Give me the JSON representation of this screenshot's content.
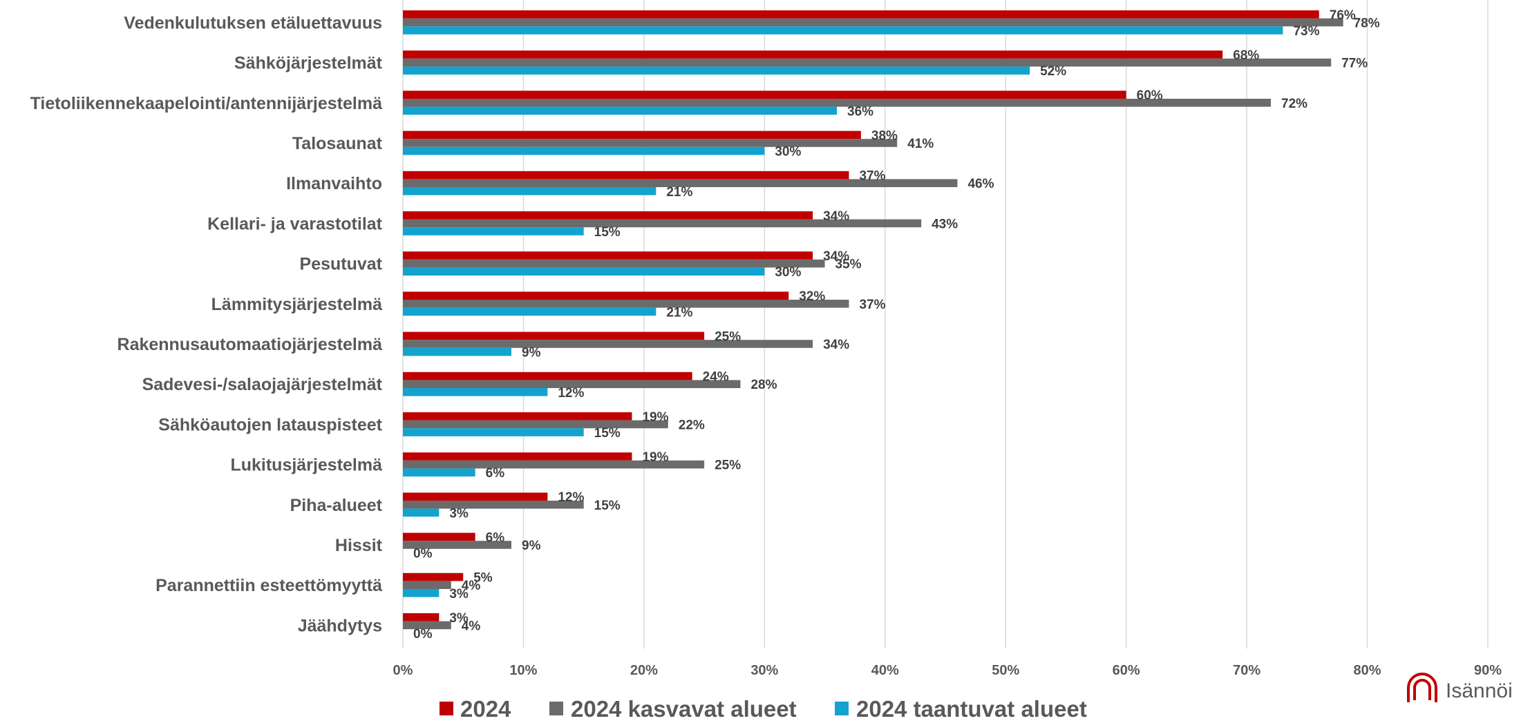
{
  "chart_data": {
    "type": "bar",
    "orientation": "horizontal",
    "categories": [
      "Vedenkulutuksen etäluettavuus",
      "Sähköjärjestelmät",
      "Tietoliikennekaapelointi/antennijärjestelmä",
      "Talosaunat",
      "Ilmanvaihto",
      "Kellari- ja varastotilat",
      "Pesutuvat",
      "Lämmitysjärjestelmä",
      "Rakennusautomaatiojärjestelmä",
      "Sadevesi-/salaojajärjestelmät",
      "Sähköautojen latauspisteet",
      "Lukitusjärjestelmä",
      "Piha-alueet",
      "Hissit",
      "Parannettiin esteettömyyttä",
      "Jäähdytys"
    ],
    "series": [
      {
        "name": "2024",
        "color": "#c00000",
        "values": [
          76,
          68,
          60,
          38,
          37,
          34,
          34,
          32,
          25,
          24,
          19,
          19,
          12,
          6,
          5,
          3
        ],
        "labels": [
          "76%",
          "68%",
          "60%",
          "38%",
          "37%",
          "34%",
          "34%",
          "32%",
          "25%",
          "24%",
          "19%",
          "19%",
          "12%",
          "6%",
          "5%",
          "3%"
        ]
      },
      {
        "name": "2024 kasvavat alueet",
        "color": "#6b6b6b",
        "values": [
          78,
          77,
          72,
          41,
          46,
          43,
          35,
          37,
          34,
          28,
          22,
          25,
          15,
          9,
          4,
          4
        ],
        "labels": [
          "78%",
          "77%",
          "72%",
          "41%",
          "46%",
          "43%",
          "35%",
          "37%",
          "34%",
          "28%",
          "22%",
          "25%",
          "15%",
          "9%",
          "4%",
          "4%"
        ]
      },
      {
        "name": "2024 taantuvat alueet",
        "color": "#13a3cf",
        "values": [
          73,
          52,
          36,
          30,
          21,
          15,
          30,
          21,
          9,
          12,
          15,
          6,
          3,
          0,
          3,
          0
        ],
        "labels": [
          "73%",
          "52%",
          "36%",
          "30%",
          "21%",
          "15%",
          "30%",
          "21%",
          "9%",
          "12%",
          "15%",
          "6%",
          "3%",
          "0%",
          "3%",
          "0%"
        ]
      }
    ],
    "xlim": [
      0,
      90
    ],
    "xticks": [
      0,
      10,
      20,
      30,
      40,
      50,
      60,
      70,
      80,
      90
    ],
    "xtick_labels": [
      "0%",
      "10%",
      "20%",
      "30%",
      "40%",
      "50%",
      "60%",
      "70%",
      "80%",
      "90%"
    ],
    "grid": true,
    "legend_position": "bottom",
    "title": "",
    "xlabel": "",
    "ylabel": ""
  },
  "logo": {
    "text": "Isännöi",
    "color": "#c00000"
  }
}
